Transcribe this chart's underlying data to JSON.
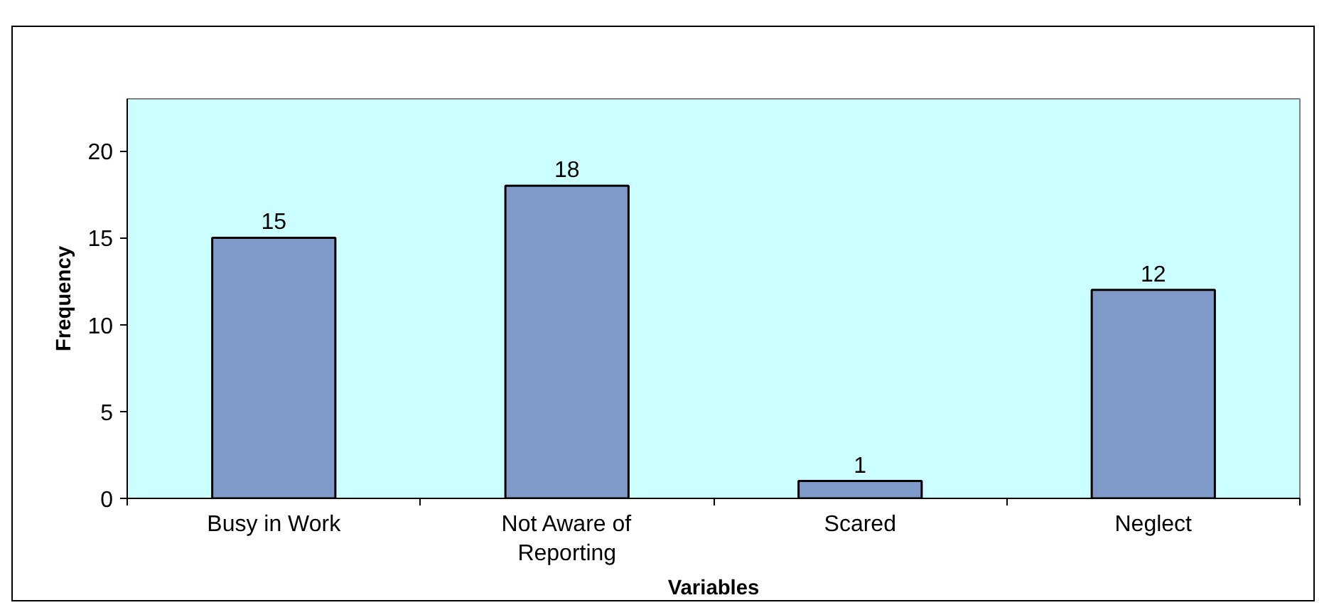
{
  "chart_data": {
    "type": "bar",
    "categories": [
      "Busy in Work",
      "Not Aware of Reporting",
      "Scared",
      "Neglect"
    ],
    "values": [
      15,
      18,
      1,
      12
    ],
    "color": "#7f9ac8",
    "xlabel": "Variables",
    "ylabel": "Frequency",
    "ylim": [
      0,
      23
    ],
    "yticks": [
      0,
      5,
      10,
      15,
      20
    ],
    "data_labels": true,
    "grid": false
  }
}
